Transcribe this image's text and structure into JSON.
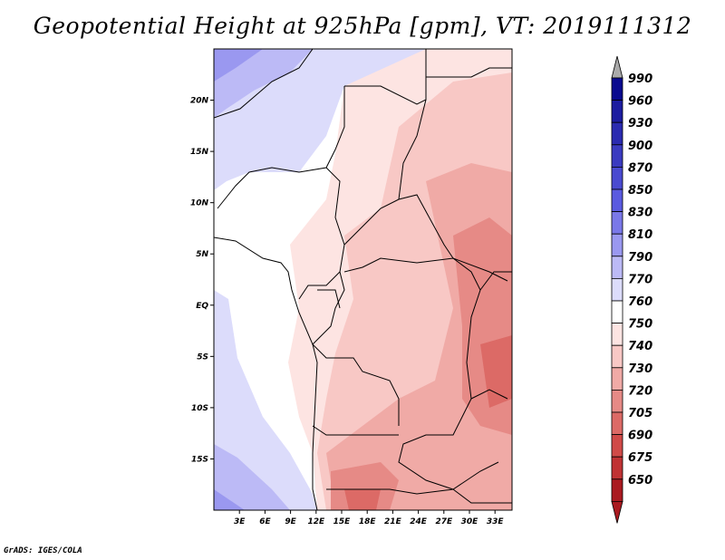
{
  "title": "Geopotential Height at 925hPa [gpm], VT: 2019111312",
  "footer": "GrADS: IGES/COLA",
  "map": {
    "lon_range": [
      0,
      35
    ],
    "lat_range": [
      -20,
      25
    ],
    "lat_ticks": [
      "20N",
      "15N",
      "10N",
      "5N",
      "EQ",
      "5S",
      "10S",
      "15S"
    ],
    "lon_ticks": [
      "3E",
      "6E",
      "9E",
      "12E",
      "15E",
      "18E",
      "21E",
      "24E",
      "27E",
      "30E",
      "33E"
    ]
  },
  "colorbar": {
    "levels": [
      "990",
      "960",
      "930",
      "900",
      "870",
      "850",
      "830",
      "810",
      "790",
      "770",
      "760",
      "750",
      "740",
      "730",
      "720",
      "705",
      "690",
      "675",
      "650"
    ],
    "colors": [
      "#0a0a8f",
      "#1c1ca0",
      "#2a2ab0",
      "#3a3ac0",
      "#4a4ad0",
      "#5a5ae0",
      "#7a78e8",
      "#9a98f0",
      "#bcbaf6",
      "#dcdcfb",
      "#ffffff",
      "#fde4e2",
      "#f8c8c5",
      "#f0aaa6",
      "#e68a86",
      "#dc6a66",
      "#d04a48",
      "#c03234",
      "#aa1a20"
    ],
    "top_arrow_color": "#aaaaaa",
    "bottom_arrow_color": "#aa1a20"
  }
}
